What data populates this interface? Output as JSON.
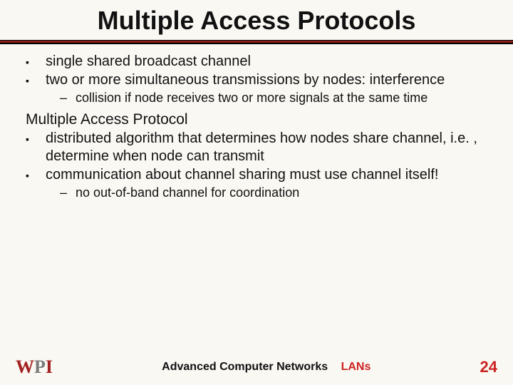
{
  "title": "Multiple Access Protocols",
  "bullets1": [
    "single shared broadcast channel",
    "two or more simultaneous transmissions by nodes: interference"
  ],
  "sub1": "collision if node receives two or more signals at the same time",
  "heading": "Multiple Access Protocol",
  "bullets2": [
    "distributed algorithm that determines how nodes share channel, i.e. , determine when node can transmit",
    "communication about channel sharing must use channel itself!"
  ],
  "sub2": "no out-of-band channel for coordination",
  "footer": {
    "course": "Advanced Computer Networks",
    "topic": "LANs",
    "page": "24",
    "logo": {
      "w": "W",
      "p": "P",
      "i": "I"
    }
  },
  "colors": {
    "rule": "#8a1f1a",
    "accent": "#c22",
    "bg": "#faf8f3"
  }
}
